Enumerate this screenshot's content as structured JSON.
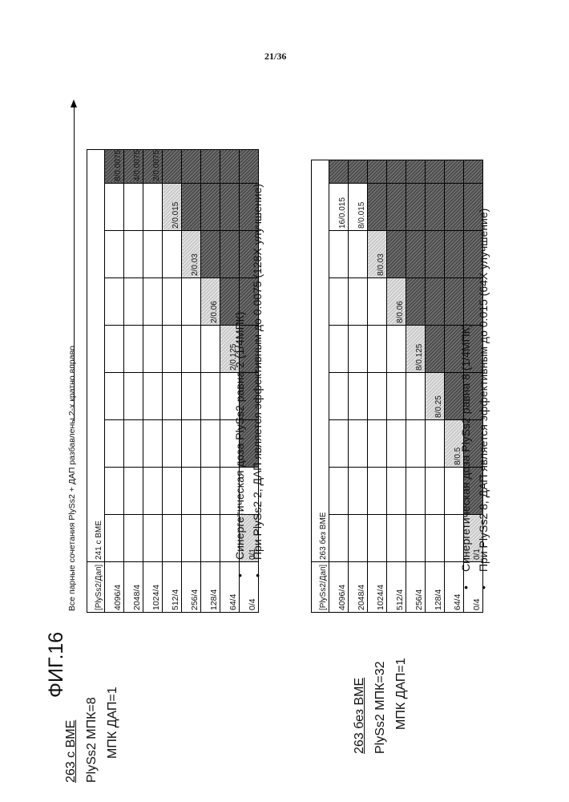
{
  "page_number": "21/36",
  "figure_title": "ФИГ.16",
  "header_note": "Все парные сочетания PlySs2 + ДАП разбавлены 2-х кратно вправо",
  "top": {
    "label_line1": "263 с ВМЕ",
    "label_line2": "PlySs2 МПК=8",
    "label_line3": "МПК ДАП=1",
    "header": [
      "[PlySs2/Дап]",
      "241 с ВМЕ"
    ],
    "rows": [
      {
        "label": "4096/4",
        "cells": [
          "",
          "",
          "",
          "",
          "",
          "",
          "",
          "",
          "8/0.0075"
        ]
      },
      {
        "label": "2048/4",
        "cells": [
          "",
          "",
          "",
          "",
          "",
          "",
          "",
          "",
          "4/0.0075"
        ]
      },
      {
        "label": "1024/4",
        "cells": [
          "",
          "",
          "",
          "",
          "",
          "",
          "",
          "",
          "2/0.0075"
        ]
      },
      {
        "label": "512/4",
        "cells": [
          "",
          "",
          "",
          "",
          "",
          "",
          "",
          "2/0.015",
          ""
        ]
      },
      {
        "label": "256/4",
        "cells": [
          "",
          "",
          "",
          "",
          "",
          "",
          "2/0.03",
          "",
          ""
        ]
      },
      {
        "label": "128/4",
        "cells": [
          "",
          "",
          "",
          "",
          "",
          "2/0.06",
          "",
          "",
          ""
        ]
      },
      {
        "label": "64/4",
        "cells": [
          "",
          "",
          "",
          "",
          "2/0.125",
          "",
          "",
          "",
          ""
        ]
      },
      {
        "label": "0/4",
        "cells": [
          "0/1",
          "",
          "",
          "",
          "",
          "",
          "",
          "",
          ""
        ]
      }
    ],
    "bullets": [
      "Синергетическая доза PlySs2 равна 2 (1/4МПК)",
      "При PlySs2 2, ДАП является эффективным до 0.0075 (128X улучшение)"
    ]
  },
  "bottom": {
    "label_line1": "263 без ВМЕ",
    "label_line2": "PlySs2 МПК=32",
    "label_line3": "МПК ДАП=1",
    "header": [
      "[PlySs2/Дап]",
      "263 без ВМЕ"
    ],
    "rows": [
      {
        "label": "4096/4",
        "cells": [
          "",
          "",
          "",
          "",
          "",
          "",
          "",
          "16/0.015",
          ""
        ]
      },
      {
        "label": "2048/4",
        "cells": [
          "",
          "",
          "",
          "",
          "",
          "",
          "",
          "8/0.015",
          ""
        ]
      },
      {
        "label": "1024/4",
        "cells": [
          "",
          "",
          "",
          "",
          "",
          "",
          "8/0.03",
          "",
          ""
        ]
      },
      {
        "label": "512/4",
        "cells": [
          "",
          "",
          "",
          "",
          "",
          "8/0.06",
          "",
          "",
          ""
        ]
      },
      {
        "label": "256/4",
        "cells": [
          "",
          "",
          "",
          "",
          "8/0.125",
          "",
          "",
          "",
          ""
        ]
      },
      {
        "label": "128/4",
        "cells": [
          "",
          "",
          "",
          "8/0.25",
          "",
          "",
          "",
          "",
          ""
        ]
      },
      {
        "label": "64/4",
        "cells": [
          "",
          "",
          "8/0.5",
          "",
          "",
          "",
          "",
          "",
          ""
        ]
      },
      {
        "label": "0/4",
        "cells": [
          "0/1",
          "",
          "",
          "",
          "",
          "",
          "",
          "",
          ""
        ]
      }
    ],
    "bullets": [
      "Синергетическая доза PlySs2 равна 8 (1/4МПК)",
      "При PlySs2 8, ДАП является эффективным до 0.015 (64X улучшение)"
    ]
  }
}
